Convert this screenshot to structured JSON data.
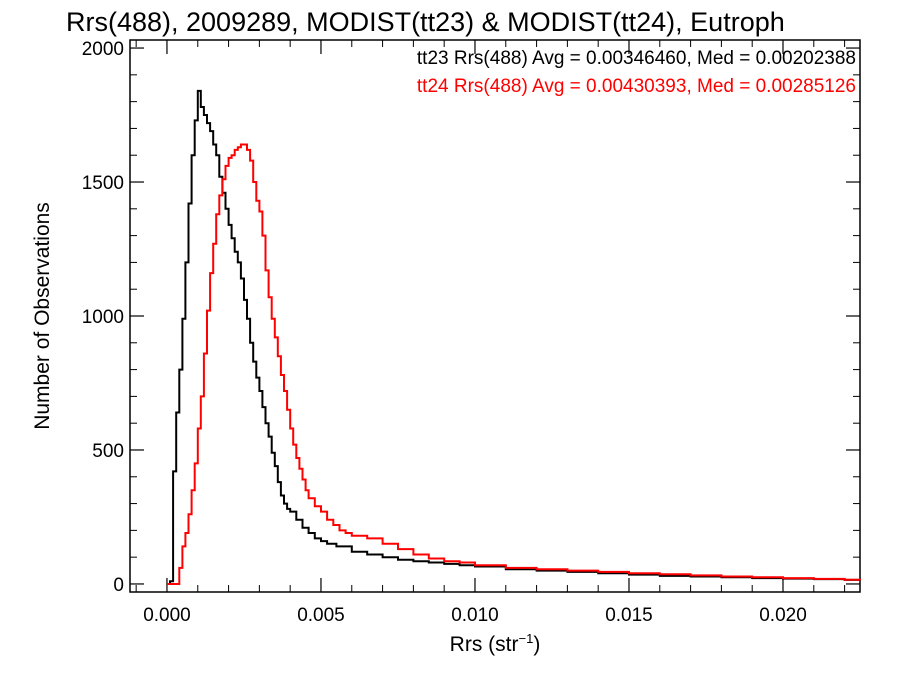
{
  "chart_data": {
    "type": "line",
    "title": "Rrs(488), 2009289, MODIST(tt23) & MODIST(tt24), Eutroph",
    "xlabel": {
      "base": "Rrs (str",
      "sup": "−1",
      "close": ")"
    },
    "ylabel": "Number of Observations",
    "xlim": [
      -0.0012,
      0.0225
    ],
    "ylim": [
      -30,
      2030
    ],
    "x_ticks": [
      0.0,
      0.005,
      0.01,
      0.015,
      0.02
    ],
    "x_tick_labels": [
      "0.000",
      "0.005",
      "0.010",
      "0.015",
      "0.020"
    ],
    "y_ticks": [
      0,
      500,
      1000,
      1500,
      2000
    ],
    "y_tick_labels": [
      "0",
      "500",
      "1000",
      "1500",
      "2000"
    ],
    "grid": false,
    "legend_position": "top-right",
    "series": [
      {
        "name": "tt23",
        "color": "#000000",
        "annotation": "tt23 Rrs(488) Avg = 0.00346460, Med = 0.00202388",
        "points": [
          [
            0.0,
            0
          ],
          [
            0.0001,
            10
          ],
          [
            0.0002,
            420
          ],
          [
            0.0003,
            640
          ],
          [
            0.0004,
            800
          ],
          [
            0.0005,
            990
          ],
          [
            0.0006,
            1200
          ],
          [
            0.0007,
            1420
          ],
          [
            0.0008,
            1600
          ],
          [
            0.0009,
            1730
          ],
          [
            0.001,
            1840
          ],
          [
            0.0011,
            1780
          ],
          [
            0.0012,
            1750
          ],
          [
            0.0013,
            1720
          ],
          [
            0.0014,
            1690
          ],
          [
            0.0015,
            1640
          ],
          [
            0.0016,
            1600
          ],
          [
            0.0017,
            1520
          ],
          [
            0.0018,
            1460
          ],
          [
            0.0019,
            1400
          ],
          [
            0.002,
            1340
          ],
          [
            0.0021,
            1290
          ],
          [
            0.0022,
            1240
          ],
          [
            0.0023,
            1200
          ],
          [
            0.0024,
            1140
          ],
          [
            0.0025,
            1060
          ],
          [
            0.0026,
            990
          ],
          [
            0.0027,
            900
          ],
          [
            0.0028,
            830
          ],
          [
            0.0029,
            770
          ],
          [
            0.003,
            720
          ],
          [
            0.0031,
            660
          ],
          [
            0.0032,
            600
          ],
          [
            0.0033,
            550
          ],
          [
            0.0034,
            490
          ],
          [
            0.0035,
            440
          ],
          [
            0.0036,
            380
          ],
          [
            0.0037,
            330
          ],
          [
            0.0038,
            300
          ],
          [
            0.0039,
            280
          ],
          [
            0.004,
            270
          ],
          [
            0.0042,
            240
          ],
          [
            0.0044,
            210
          ],
          [
            0.0046,
            190
          ],
          [
            0.0048,
            170
          ],
          [
            0.005,
            160
          ],
          [
            0.0052,
            150
          ],
          [
            0.0055,
            140
          ],
          [
            0.006,
            120
          ],
          [
            0.0065,
            110
          ],
          [
            0.007,
            100
          ],
          [
            0.0075,
            90
          ],
          [
            0.008,
            85
          ],
          [
            0.0085,
            80
          ],
          [
            0.009,
            75
          ],
          [
            0.0095,
            70
          ],
          [
            0.01,
            65
          ],
          [
            0.011,
            55
          ],
          [
            0.012,
            50
          ],
          [
            0.013,
            45
          ],
          [
            0.014,
            40
          ],
          [
            0.015,
            35
          ],
          [
            0.016,
            30
          ],
          [
            0.017,
            28
          ],
          [
            0.018,
            25
          ],
          [
            0.019,
            22
          ],
          [
            0.02,
            20
          ],
          [
            0.021,
            18
          ],
          [
            0.022,
            15
          ],
          [
            0.0225,
            13
          ]
        ]
      },
      {
        "name": "tt24",
        "color": "#ff0000",
        "annotation": "tt24 Rrs(488) Avg = 0.00430393, Med = 0.00285126",
        "points": [
          [
            0.0,
            0
          ],
          [
            0.0003,
            0
          ],
          [
            0.0004,
            60
          ],
          [
            0.0005,
            140
          ],
          [
            0.0006,
            190
          ],
          [
            0.0007,
            260
          ],
          [
            0.0008,
            350
          ],
          [
            0.0009,
            450
          ],
          [
            0.001,
            580
          ],
          [
            0.0011,
            700
          ],
          [
            0.0012,
            860
          ],
          [
            0.0013,
            1020
          ],
          [
            0.0014,
            1160
          ],
          [
            0.0015,
            1270
          ],
          [
            0.0016,
            1380
          ],
          [
            0.0017,
            1450
          ],
          [
            0.0018,
            1510
          ],
          [
            0.0019,
            1560
          ],
          [
            0.002,
            1590
          ],
          [
            0.0021,
            1600
          ],
          [
            0.0022,
            1620
          ],
          [
            0.0023,
            1630
          ],
          [
            0.0024,
            1640
          ],
          [
            0.0025,
            1640
          ],
          [
            0.0026,
            1620
          ],
          [
            0.0027,
            1580
          ],
          [
            0.0028,
            1500
          ],
          [
            0.0029,
            1430
          ],
          [
            0.003,
            1390
          ],
          [
            0.0031,
            1300
          ],
          [
            0.0032,
            1170
          ],
          [
            0.0033,
            1070
          ],
          [
            0.0034,
            990
          ],
          [
            0.0035,
            920
          ],
          [
            0.0036,
            850
          ],
          [
            0.0037,
            780
          ],
          [
            0.0038,
            720
          ],
          [
            0.0039,
            650
          ],
          [
            0.004,
            580
          ],
          [
            0.0041,
            520
          ],
          [
            0.0042,
            470
          ],
          [
            0.0043,
            430
          ],
          [
            0.0044,
            390
          ],
          [
            0.0045,
            350
          ],
          [
            0.0046,
            320
          ],
          [
            0.0048,
            290
          ],
          [
            0.005,
            270
          ],
          [
            0.0052,
            240
          ],
          [
            0.0054,
            220
          ],
          [
            0.0056,
            200
          ],
          [
            0.0058,
            190
          ],
          [
            0.006,
            180
          ],
          [
            0.0065,
            170
          ],
          [
            0.007,
            150
          ],
          [
            0.0075,
            130
          ],
          [
            0.008,
            110
          ],
          [
            0.0085,
            95
          ],
          [
            0.009,
            85
          ],
          [
            0.0095,
            80
          ],
          [
            0.01,
            70
          ],
          [
            0.011,
            60
          ],
          [
            0.012,
            55
          ],
          [
            0.013,
            50
          ],
          [
            0.014,
            45
          ],
          [
            0.015,
            40
          ],
          [
            0.016,
            36
          ],
          [
            0.017,
            32
          ],
          [
            0.018,
            28
          ],
          [
            0.019,
            25
          ],
          [
            0.02,
            22
          ],
          [
            0.021,
            19
          ],
          [
            0.022,
            16
          ],
          [
            0.0225,
            14
          ]
        ]
      }
    ]
  }
}
